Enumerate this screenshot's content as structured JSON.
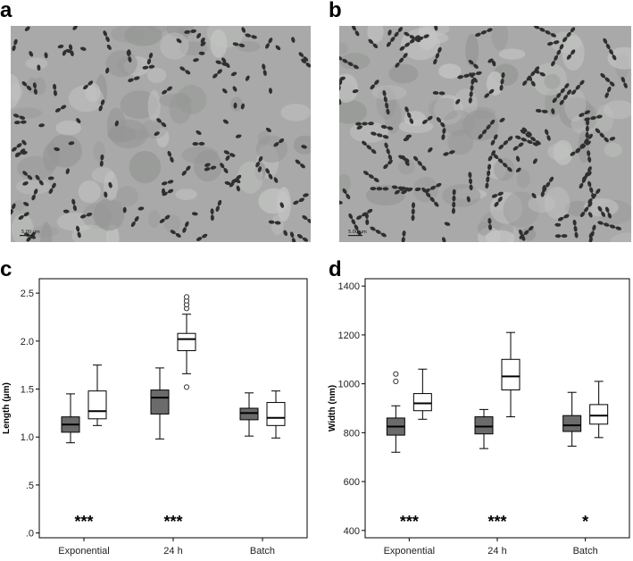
{
  "panels": {
    "a": {
      "letter": "a",
      "scale_label": "5.00 μm"
    },
    "b": {
      "letter": "b",
      "scale_label": "5.00 μm"
    },
    "c": {
      "letter": "c"
    },
    "d": {
      "letter": "d"
    }
  },
  "chart_data": [
    {
      "type": "box",
      "panel": "c",
      "title": "",
      "ylabel": "Length (μm)",
      "xlabel": "",
      "ylim": [
        -0.05,
        2.65
      ],
      "yticks": [
        0.0,
        0.5,
        1.0,
        1.5,
        2.0,
        2.5
      ],
      "ytick_labels": [
        ".0",
        ".5",
        "1.0",
        "1.5",
        "2.0",
        "2.5"
      ],
      "categories": [
        "Exponential",
        "24 h",
        "Batch"
      ],
      "groups": [
        {
          "category": "Exponential",
          "significance": "***",
          "boxes": [
            {
              "fill": "#6b6b6b",
              "min": 0.94,
              "q1": 1.05,
              "median": 1.13,
              "q3": 1.21,
              "max": 1.45,
              "outliers": []
            },
            {
              "fill": "#ffffff",
              "min": 1.12,
              "q1": 1.19,
              "median": 1.27,
              "q3": 1.48,
              "max": 1.75,
              "outliers": []
            }
          ]
        },
        {
          "category": "24 h",
          "significance": "***",
          "boxes": [
            {
              "fill": "#6b6b6b",
              "min": 0.98,
              "q1": 1.24,
              "median": 1.41,
              "q3": 1.49,
              "max": 1.72,
              "outliers": []
            },
            {
              "fill": "#ffffff",
              "min": 1.66,
              "q1": 1.9,
              "median": 2.02,
              "q3": 2.08,
              "max": 2.28,
              "outliers": [
                1.52,
                2.34,
                2.38,
                2.42,
                2.46
              ]
            }
          ]
        },
        {
          "category": "Batch",
          "significance": "",
          "boxes": [
            {
              "fill": "#6b6b6b",
              "min": 1.01,
              "q1": 1.18,
              "median": 1.25,
              "q3": 1.3,
              "max": 1.46,
              "outliers": []
            },
            {
              "fill": "#ffffff",
              "min": 0.99,
              "q1": 1.12,
              "median": 1.2,
              "q3": 1.36,
              "max": 1.48,
              "outliers": []
            }
          ]
        }
      ]
    },
    {
      "type": "box",
      "panel": "d",
      "title": "",
      "ylabel": "Width (nm)",
      "xlabel": "",
      "ylim": [
        370,
        1430
      ],
      "yticks": [
        400,
        600,
        800,
        1000,
        1200,
        1400
      ],
      "ytick_labels": [
        "400",
        "600",
        "800",
        "1000",
        "1200",
        "1400"
      ],
      "categories": [
        "Exponential",
        "24 h",
        "Batch"
      ],
      "groups": [
        {
          "category": "Exponential",
          "significance": "***",
          "boxes": [
            {
              "fill": "#6b6b6b",
              "min": 720,
              "q1": 790,
              "median": 825,
              "q3": 860,
              "max": 910,
              "outliers": [
                1010,
                1040
              ]
            },
            {
              "fill": "#ffffff",
              "min": 855,
              "q1": 890,
              "median": 920,
              "q3": 960,
              "max": 1060,
              "outliers": []
            }
          ]
        },
        {
          "category": "24 h",
          "significance": "***",
          "boxes": [
            {
              "fill": "#6b6b6b",
              "min": 735,
              "q1": 795,
              "median": 825,
              "q3": 865,
              "max": 895,
              "outliers": []
            },
            {
              "fill": "#ffffff",
              "min": 865,
              "q1": 975,
              "median": 1030,
              "q3": 1100,
              "max": 1210,
              "outliers": []
            }
          ]
        },
        {
          "category": "Batch",
          "significance": "*",
          "boxes": [
            {
              "fill": "#6b6b6b",
              "min": 745,
              "q1": 805,
              "median": 830,
              "q3": 870,
              "max": 965,
              "outliers": []
            },
            {
              "fill": "#ffffff",
              "min": 780,
              "q1": 835,
              "median": 870,
              "q3": 915,
              "max": 1010,
              "outliers": []
            }
          ]
        }
      ]
    }
  ]
}
